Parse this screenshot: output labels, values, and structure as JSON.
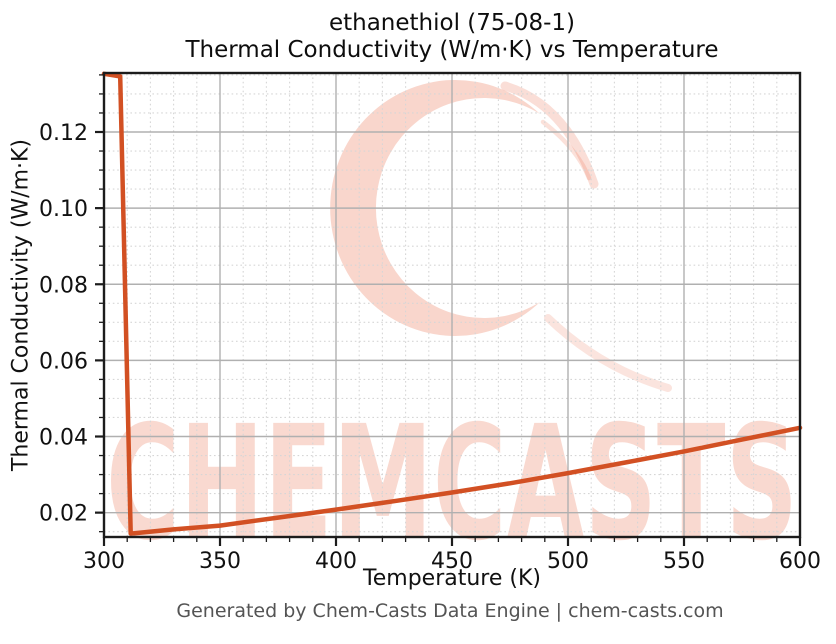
{
  "figure": {
    "title_line1": "ethanethiol (75-08-1)",
    "title_line2": "Thermal Conductivity (W/m·K) vs Temperature",
    "xlabel": "Temperature (K)",
    "ylabel": "Thermal Conductivity (W/m·K)",
    "footer": "Generated by Chem-Casts Data Engine | chem-casts.com"
  },
  "watermark": {
    "text": "CHEMCASTS",
    "logo": "chemcasts-c-brush-swoosh",
    "color": "#e96a47"
  },
  "colors": {
    "line": "#d25023",
    "grid_major": "#b0b0b0",
    "grid_minor": "#d6d6d6",
    "spine": "#1c1c1c",
    "tick": "#1c1c1c",
    "tick_label": "#111111",
    "title_text": "#0d0d0d",
    "footer_text": "#545454",
    "background": "#ffffff"
  },
  "chart_data": {
    "type": "line",
    "title": "ethanethiol (75-08-1) Thermal Conductivity (W/m·K) vs Temperature",
    "xlabel": "Temperature (K)",
    "ylabel": "Thermal Conductivity (W/m·K)",
    "xlim": [
      300,
      600
    ],
    "ylim": [
      0.0136,
      0.1355
    ],
    "x_ticks": [
      300,
      350,
      400,
      450,
      500,
      550,
      600
    ],
    "x_tick_labels": [
      "300",
      "350",
      "400",
      "450",
      "500",
      "550",
      "600"
    ],
    "y_ticks": [
      0.02,
      0.04,
      0.06,
      0.08,
      0.1,
      0.12
    ],
    "y_tick_labels": [
      "0.02",
      "0.04",
      "0.06",
      "0.08",
      "0.10",
      "0.12"
    ],
    "x_minor_step": 10,
    "y_minor_step": 0.005,
    "grid": {
      "major": "solid",
      "minor": "dotted",
      "visible": true
    },
    "legend": "none",
    "series": [
      {
        "name": "thermal-conductivity",
        "color": "#d25023",
        "points": [
          [
            300,
            0.1353
          ],
          [
            307,
            0.1346
          ],
          [
            311.5,
            0.0145
          ],
          [
            330,
            0.0156
          ],
          [
            350,
            0.0166
          ],
          [
            375,
            0.0187
          ],
          [
            400,
            0.0208
          ],
          [
            425,
            0.023
          ],
          [
            450,
            0.0253
          ],
          [
            475,
            0.0277
          ],
          [
            500,
            0.0304
          ],
          [
            525,
            0.0332
          ],
          [
            550,
            0.0361
          ],
          [
            575,
            0.0392
          ],
          [
            600,
            0.0423
          ]
        ]
      }
    ]
  }
}
